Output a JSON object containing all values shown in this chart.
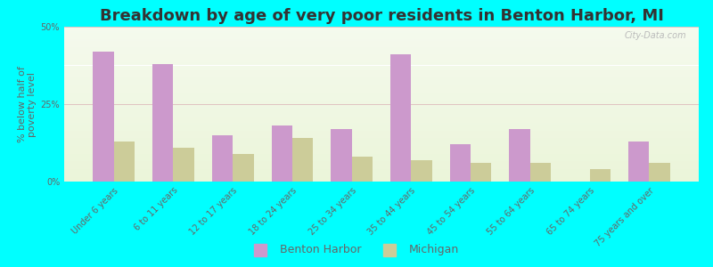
{
  "title": "Breakdown by age of very poor residents in Benton Harbor, MI",
  "ylabel": "% below half of\npoverty level",
  "categories": [
    "Under 6 years",
    "6 to 11 years",
    "12 to 17 years",
    "18 to 24 years",
    "25 to 34 years",
    "35 to 44 years",
    "45 to 54 years",
    "55 to 64 years",
    "65 to 74 years",
    "75 years and over"
  ],
  "benton_harbor": [
    42,
    38,
    15,
    18,
    17,
    41,
    12,
    17,
    0,
    13
  ],
  "michigan": [
    13,
    11,
    9,
    14,
    8,
    7,
    6,
    6,
    4,
    6
  ],
  "bar_color_benton": "#cc99cc",
  "bar_color_michigan": "#cccc99",
  "background_color": "#00ffff",
  "ylim": [
    0,
    50
  ],
  "yticks": [
    0,
    25,
    50
  ],
  "ytick_labels": [
    "0%",
    "25%",
    "50%"
  ],
  "title_fontsize": 13,
  "axis_label_fontsize": 8,
  "tick_label_fontsize": 7,
  "legend_benton": "Benton Harbor",
  "legend_michigan": "Michigan",
  "bar_width": 0.35,
  "watermark": "City-Data.com"
}
